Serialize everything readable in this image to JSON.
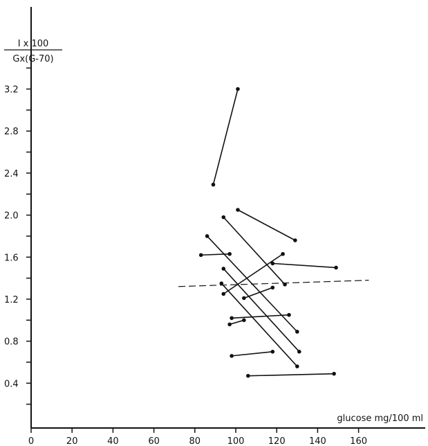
{
  "chart_data": {
    "type": "line",
    "ylabel_numerator": "I x 100",
    "ylabel_denominator": "Gx(G-70)",
    "xlabel": "glucose mg/100 ml",
    "x_ticks": [
      "0",
      "20",
      "40",
      "60",
      "80",
      "100",
      "120",
      "140",
      "160"
    ],
    "y_ticks": [
      "0.4",
      "0.8",
      "1.2",
      "1.6",
      "2.0",
      "2.4",
      "2.8",
      "3.2"
    ],
    "xlim": [
      0,
      180
    ],
    "ylim": [
      0,
      3.6
    ],
    "series": [
      {
        "x": [
          89,
          101
        ],
        "y": [
          2.29,
          3.2
        ]
      },
      {
        "x": [
          101,
          129
        ],
        "y": [
          2.05,
          1.76
        ]
      },
      {
        "x": [
          94,
          124
        ],
        "y": [
          1.98,
          1.34
        ]
      },
      {
        "x": [
          86,
          130
        ],
        "y": [
          1.8,
          0.89
        ]
      },
      {
        "x": [
          83,
          97
        ],
        "y": [
          1.62,
          1.63
        ]
      },
      {
        "x": [
          94,
          123
        ],
        "y": [
          1.25,
          1.63
        ]
      },
      {
        "x": [
          118,
          149
        ],
        "y": [
          1.54,
          1.5
        ]
      },
      {
        "x": [
          94,
          131
        ],
        "y": [
          1.49,
          0.7
        ]
      },
      {
        "x": [
          93,
          130
        ],
        "y": [
          1.35,
          0.56
        ]
      },
      {
        "x": [
          104,
          118
        ],
        "y": [
          1.21,
          1.31
        ]
      },
      {
        "x": [
          98,
          126
        ],
        "y": [
          1.02,
          1.05
        ]
      },
      {
        "x": [
          97,
          104
        ],
        "y": [
          0.96,
          1.0
        ]
      },
      {
        "x": [
          98,
          118
        ],
        "y": [
          0.66,
          0.7
        ]
      },
      {
        "x": [
          106,
          148
        ],
        "y": [
          0.47,
          0.49
        ]
      }
    ],
    "reference_line": {
      "style": "dashed",
      "x": [
        72,
        165
      ],
      "y": [
        1.32,
        1.38
      ]
    },
    "grid": false
  }
}
